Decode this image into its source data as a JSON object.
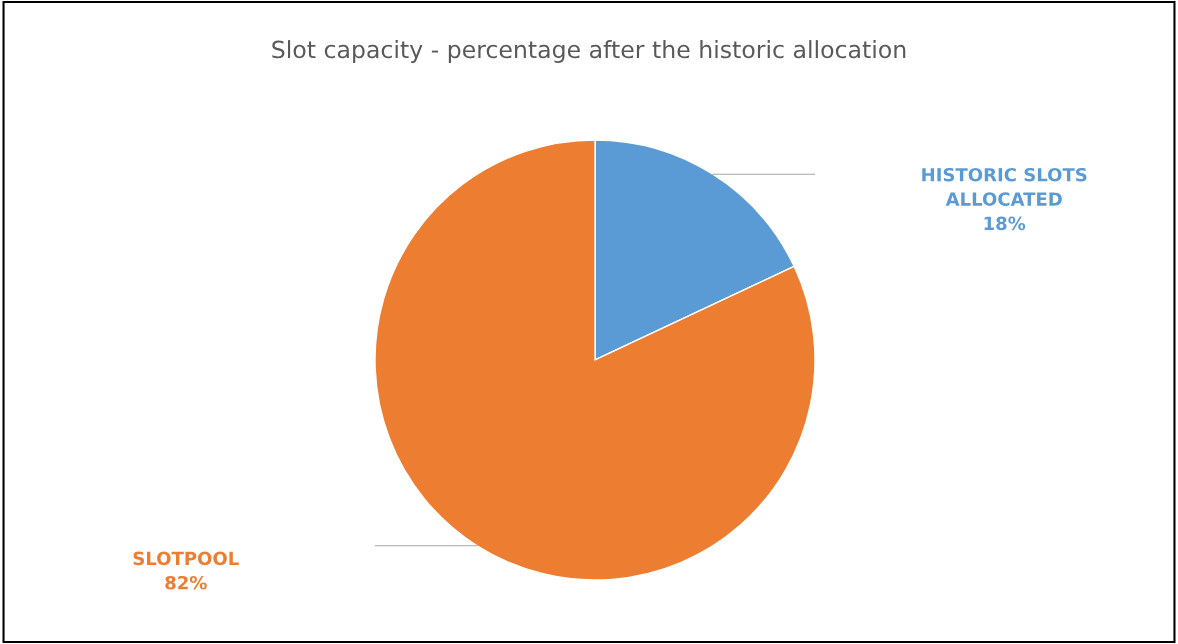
{
  "chart_data": {
    "type": "pie",
    "title": "Slot capacity - percentage after the historic allocation",
    "categories": [
      "HISTORIC SLOTS ALLOCATED",
      "SLOTPOOL"
    ],
    "values": [
      18,
      82
    ],
    "value_labels": [
      "18%",
      "82%"
    ],
    "colors": [
      "#5b9bd5",
      "#ed7d31"
    ],
    "legend": false
  }
}
